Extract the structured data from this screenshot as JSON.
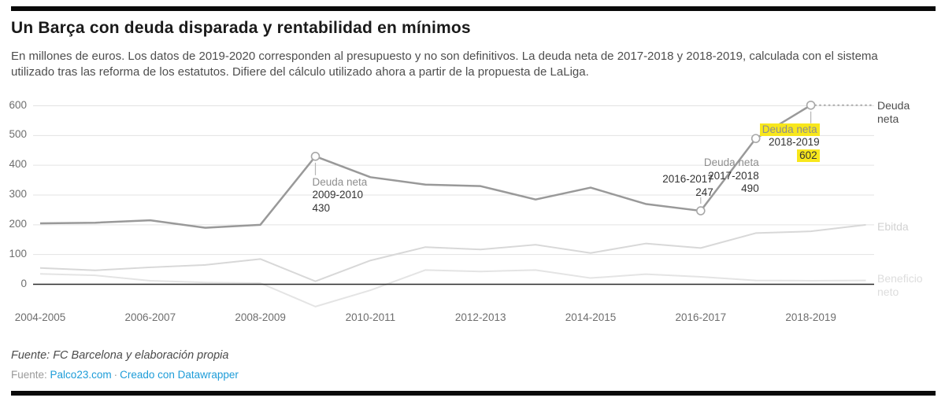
{
  "header": {
    "title": "Un Barça con deuda disparada y rentabilidad en mínimos",
    "subtitle": "En millones de euros. Los datos de 2019-2020 corresponden al presupuesto y no son definitivos. La deuda neta de 2017-2018 y 2018-2019, calculada con el sistema utilizado tras las reforma de los estatutos. Difiere del cálculo utilizado ahora a partir de la propuesta de LaLiga."
  },
  "footer": {
    "source_line1": "Fuente: FC Barcelona y elaboración propia",
    "source_label": "Fuente:",
    "source_link": "Palco23.com",
    "separator": "·",
    "credit_link": "Creado con Datawrapper"
  },
  "chart_data": {
    "type": "line",
    "unit": "millones de euros",
    "x": [
      "2004-2005",
      "2005-2006",
      "2006-2007",
      "2007-2008",
      "2008-2009",
      "2009-2010",
      "2010-2011",
      "2011-2012",
      "2012-2013",
      "2013-2014",
      "2014-2015",
      "2015-2016",
      "2016-2017",
      "2017-2018",
      "2018-2019",
      "2019-2020"
    ],
    "x_tick_labels": [
      "2004-2005",
      "2006-2007",
      "2008-2009",
      "2010-2011",
      "2012-2013",
      "2014-2015",
      "2016-2017",
      "2018-2019"
    ],
    "yticks": [
      0,
      100,
      200,
      300,
      400,
      500,
      600
    ],
    "ylim": [
      -90,
      640
    ],
    "grid": true,
    "legend_position": "right-edge-labels",
    "highlight_color": "#f8e71c",
    "zero_line_color": "#2b2b2b",
    "grid_color": "#e3e3e3",
    "series": [
      {
        "name": "Deuda neta",
        "color": "#999999",
        "label_color": "#4d4d4d",
        "width": 2.5,
        "values": [
          205,
          207,
          215,
          190,
          200,
          430,
          360,
          335,
          330,
          285,
          325,
          270,
          247,
          490,
          602,
          602
        ],
        "last_segment_style": "dotted"
      },
      {
        "name": "Ebitda",
        "color": "#d8d8d8",
        "label_color": "#d2d2d2",
        "width": 2,
        "values": [
          55,
          47,
          57,
          65,
          85,
          10,
          80,
          125,
          117,
          133,
          105,
          137,
          122,
          172,
          178,
          200
        ]
      },
      {
        "name": "Beneficio neto",
        "color": "#e4e4e4",
        "label_color": "#dddddd",
        "width": 2,
        "values": [
          35,
          30,
          12,
          6,
          4,
          -75,
          -20,
          48,
          43,
          48,
          21,
          34,
          25,
          13,
          12,
          13
        ]
      }
    ],
    "markers": [
      {
        "season": "2009-2010",
        "value": 430
      },
      {
        "season": "2016-2017",
        "value": 247
      },
      {
        "season": "2017-2018",
        "value": 490
      },
      {
        "season": "2018-2019",
        "value": 602
      }
    ],
    "annotations": [
      {
        "series": "Deuda neta",
        "season": "2009-2010",
        "value": "430",
        "highlight": false
      },
      {
        "series": "",
        "season": "2016-2017",
        "value": "247",
        "highlight": false
      },
      {
        "series": "Deuda neta",
        "season": "2017-2018",
        "value": "490",
        "highlight": false
      },
      {
        "series": "Deuda neta",
        "season": "2018-2019",
        "value": "602",
        "highlight": true
      }
    ]
  }
}
